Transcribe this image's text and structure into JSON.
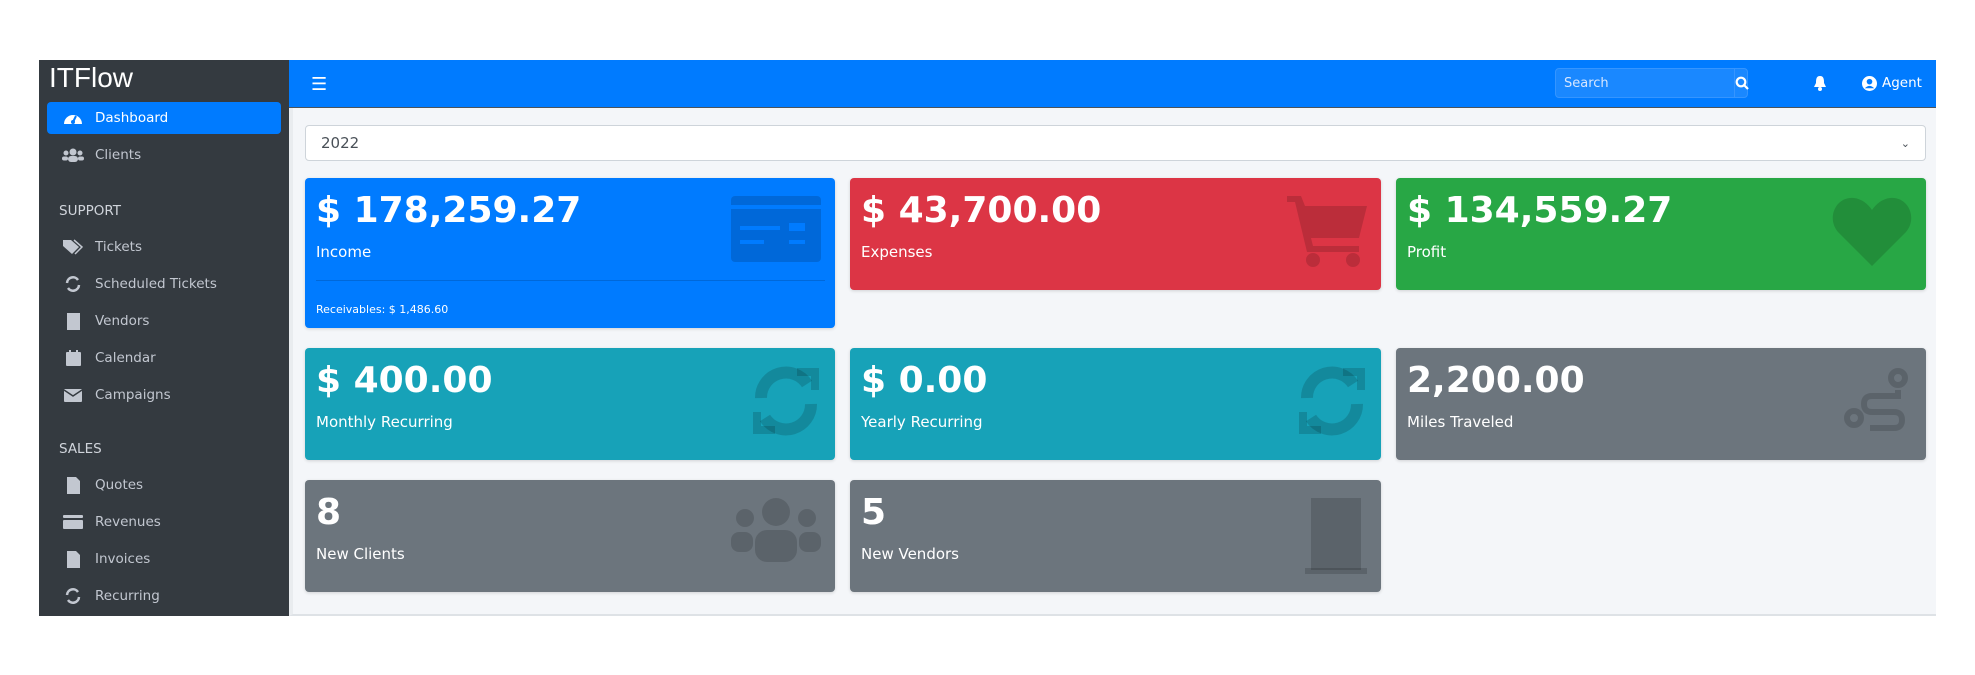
{
  "app": {
    "title": "ITFlow"
  },
  "sidebar": {
    "items": [
      {
        "label": "Dashboard",
        "icon": "tachometer-icon",
        "active": true
      },
      {
        "label": "Clients",
        "icon": "users-icon"
      }
    ],
    "support_header": "SUPPORT",
    "support": [
      {
        "label": "Tickets",
        "icon": "tags-icon"
      },
      {
        "label": "Scheduled Tickets",
        "icon": "sync-icon"
      },
      {
        "label": "Vendors",
        "icon": "building-icon"
      },
      {
        "label": "Calendar",
        "icon": "calendar-icon"
      },
      {
        "label": "Campaigns",
        "icon": "envelope-icon"
      }
    ],
    "sales_header": "SALES",
    "sales": [
      {
        "label": "Quotes",
        "icon": "file-icon"
      },
      {
        "label": "Revenues",
        "icon": "credit-card-icon"
      },
      {
        "label": "Invoices",
        "icon": "file-invoice-dollar-icon"
      },
      {
        "label": "Recurring",
        "icon": "sync-icon"
      }
    ]
  },
  "topbar": {
    "search_placeholder": "Search",
    "user": "Agent"
  },
  "year_select": {
    "value": "2022"
  },
  "cards": [
    {
      "value": "$ 178,259.27",
      "label": "Income",
      "footer": "Receivables: $ 1,486.60",
      "color": "#007bff",
      "icon": "credit-card-icon"
    },
    {
      "value": "$ 43,700.00",
      "label": "Expenses",
      "color": "#dc3545",
      "icon": "shopping-cart-icon"
    },
    {
      "value": "$ 134,559.27",
      "label": "Profit",
      "color": "#28a745",
      "icon": "heart-icon"
    },
    {
      "value": "$ 400.00",
      "label": "Monthly Recurring",
      "color": "#17a2b8",
      "icon": "sync-icon"
    },
    {
      "value": "$ 0.00",
      "label": "Yearly Recurring",
      "color": "#17a2b8",
      "icon": "sync-icon"
    },
    {
      "value": "2,200.00",
      "label": "Miles Traveled",
      "color": "#6c757d",
      "icon": "route-icon"
    },
    {
      "value": "8",
      "label": "New Clients",
      "color": "#6c757d",
      "icon": "users-icon"
    },
    {
      "value": "5",
      "label": "New Vendors",
      "color": "#6c757d",
      "icon": "building-icon"
    }
  ]
}
